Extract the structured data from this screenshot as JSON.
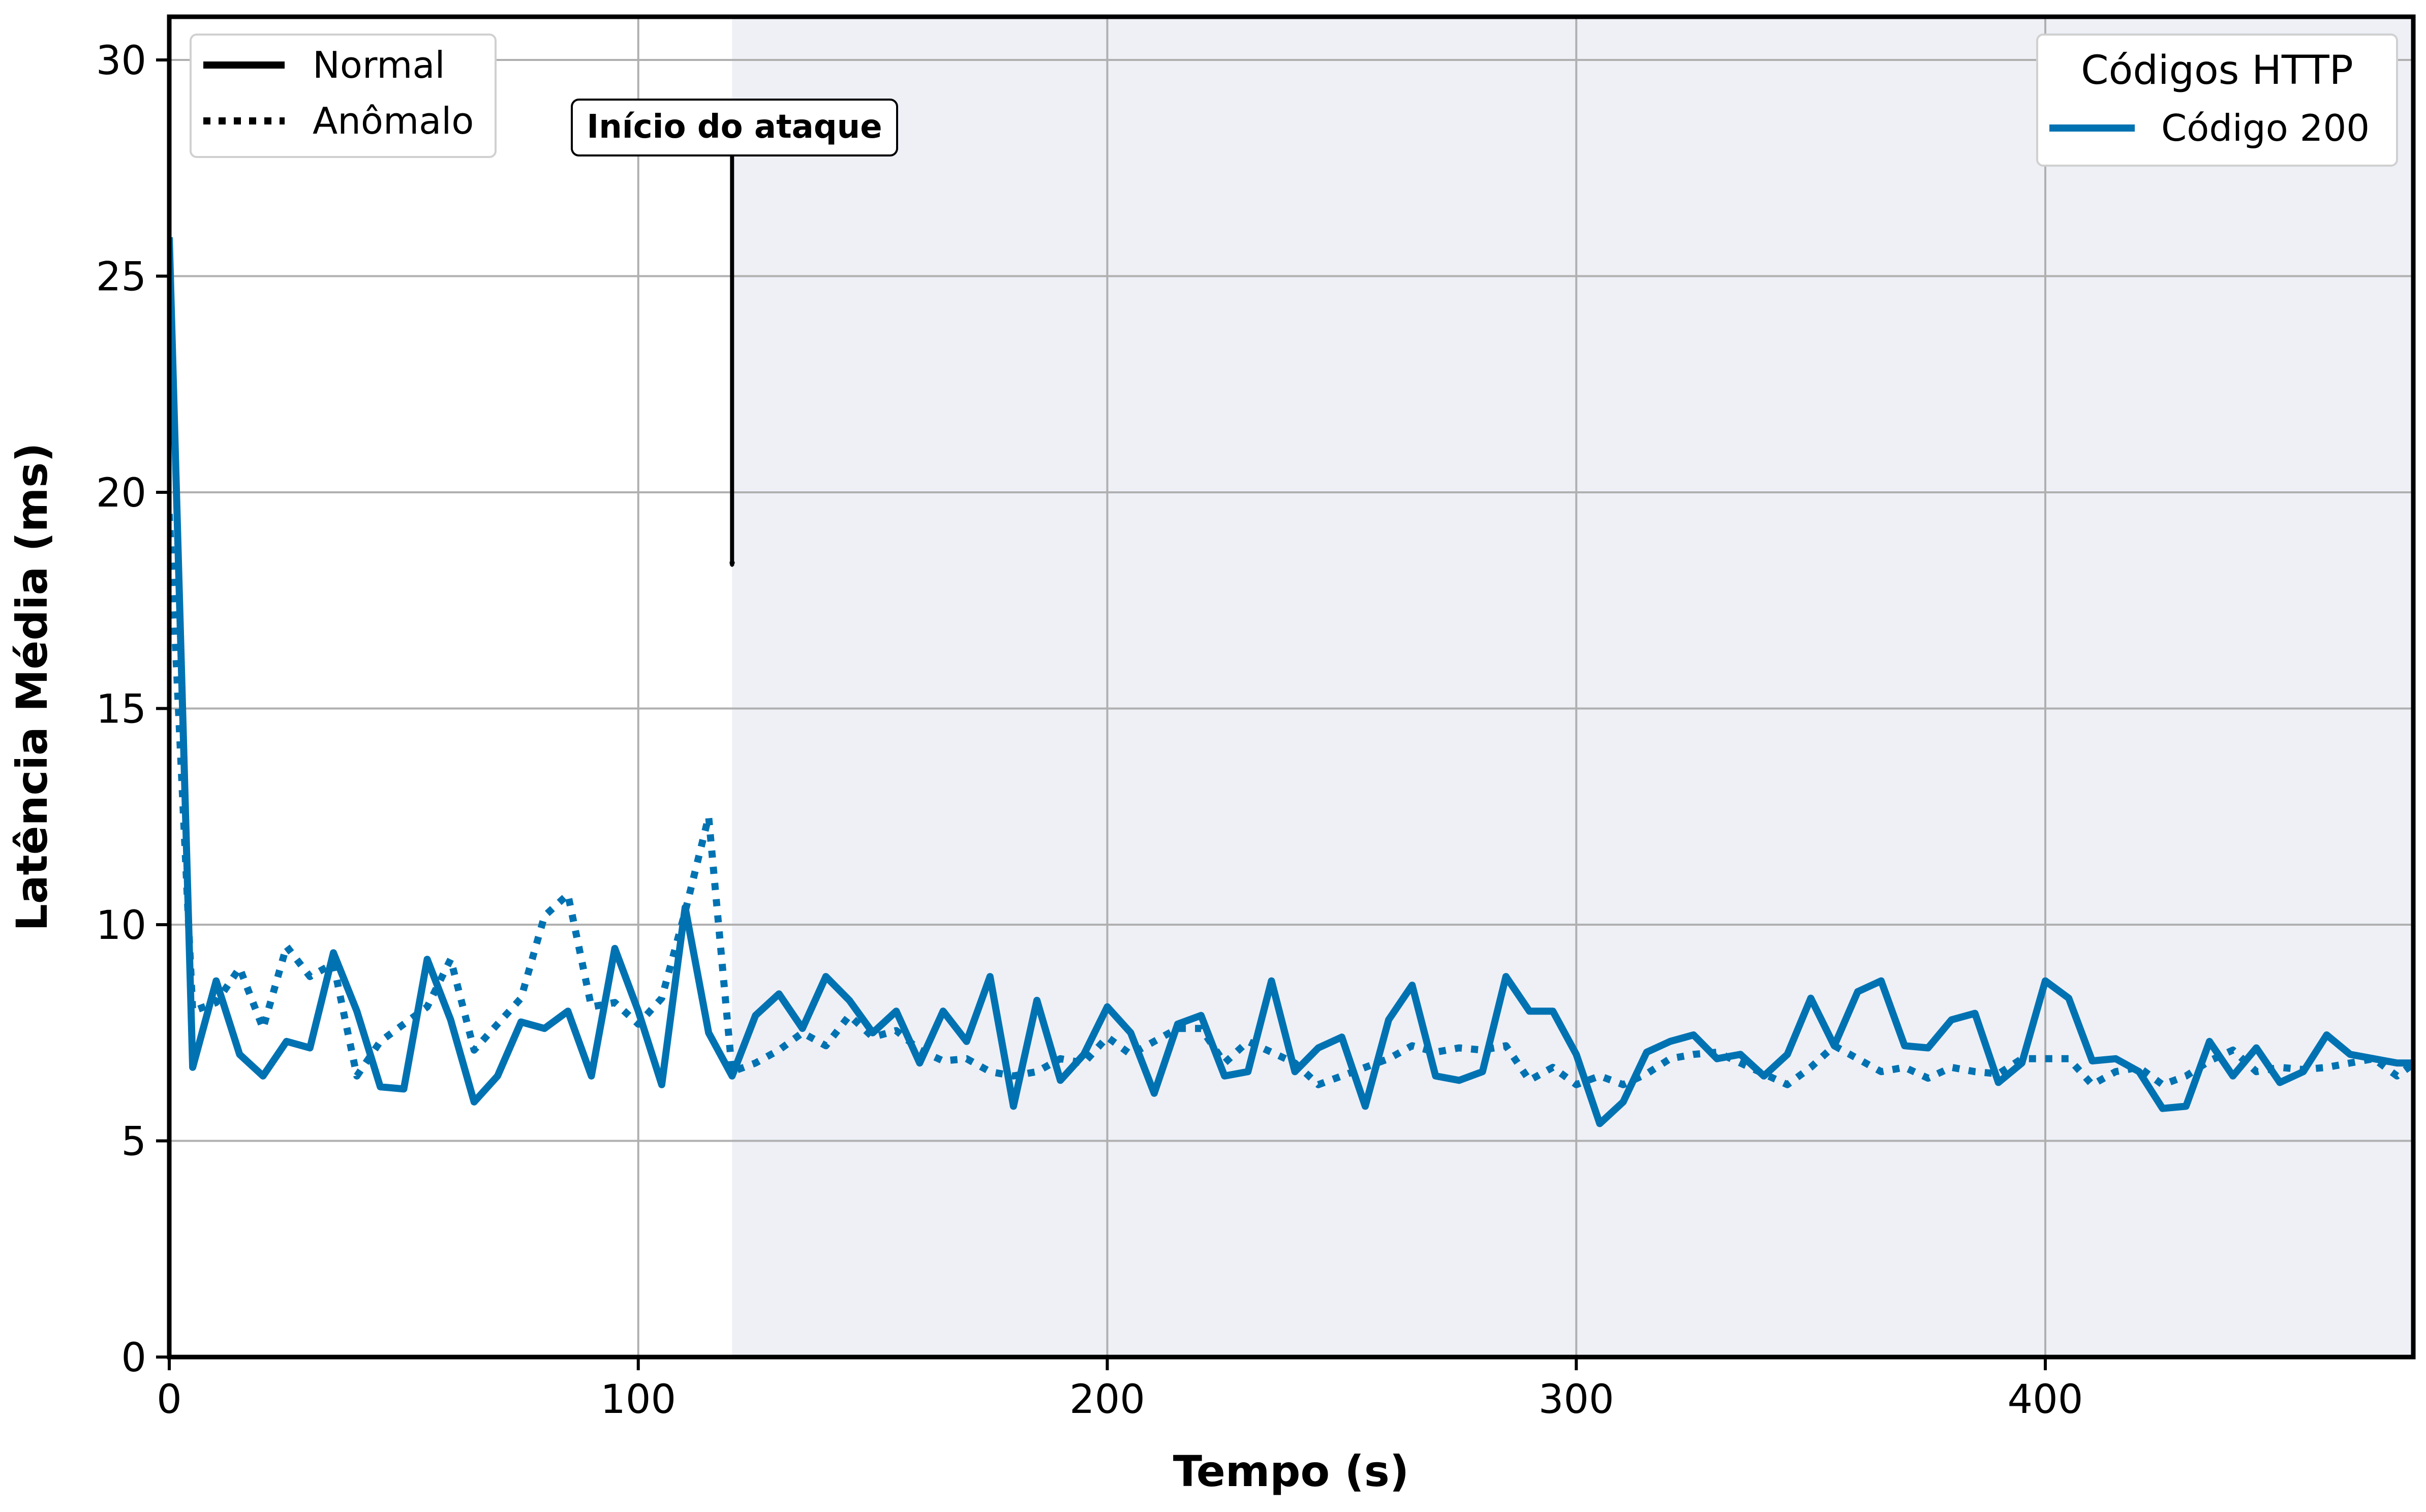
{
  "chart_data": {
    "type": "line",
    "title": "",
    "xlabel": "Tempo (s)",
    "ylabel": "Latência Média (ms)",
    "xlim": [
      0,
      480
    ],
    "ylim": [
      0,
      31
    ],
    "xticks": [
      0,
      100,
      200,
      300,
      400
    ],
    "yticks": [
      0,
      5,
      10,
      15,
      20,
      25,
      30
    ],
    "grid": true,
    "attack_start": 120,
    "shaded_region": [
      120,
      480
    ],
    "shaded_color": "#eef0f6",
    "annotation": {
      "text": "Início do ataque",
      "x": 120,
      "y": 18.3
    },
    "style_legend": {
      "position": "upper-left",
      "entries": [
        {
          "label": "Normal",
          "style": "solid"
        },
        {
          "label": "Anômalo",
          "style": "dotted"
        }
      ]
    },
    "code_legend": {
      "position": "upper-right",
      "title": "Códigos HTTP",
      "entries": [
        {
          "label": "Código 200",
          "color": "#0072B2"
        }
      ]
    },
    "series": [
      {
        "name": "Normal",
        "code": "Código 200",
        "style": "solid",
        "color": "#0072B2",
        "x": [
          0,
          5,
          10,
          15,
          20,
          25,
          30,
          35,
          40,
          45,
          50,
          55,
          60,
          65,
          70,
          75,
          80,
          85,
          90,
          95,
          100,
          105,
          110,
          115,
          120,
          125,
          130,
          135,
          140,
          145,
          150,
          155,
          160,
          165,
          170,
          175,
          180,
          185,
          190,
          195,
          200,
          205,
          210,
          215,
          220,
          225,
          230,
          235,
          240,
          245,
          250,
          255,
          260,
          265,
          270,
          275,
          280,
          285,
          290,
          295,
          300,
          305,
          310,
          315,
          320,
          325,
          330,
          335,
          340,
          345,
          350,
          355,
          360,
          365,
          370,
          375,
          380,
          385,
          390,
          395,
          400,
          405,
          410,
          415,
          420,
          425,
          430,
          435,
          440,
          445,
          450,
          455,
          460,
          465,
          470,
          475,
          480
        ],
        "y": [
          25.9,
          6.7,
          8.7,
          7.0,
          6.5,
          7.3,
          7.15,
          9.35,
          8.0,
          6.25,
          6.2,
          9.2,
          7.8,
          5.9,
          6.5,
          7.75,
          7.6,
          8.0,
          6.5,
          9.45,
          8.0,
          6.3,
          10.4,
          7.5,
          6.5,
          7.9,
          8.4,
          7.6,
          8.8,
          8.25,
          7.5,
          8.0,
          6.8,
          8.0,
          7.3,
          8.8,
          5.8,
          8.25,
          6.4,
          7.0,
          8.1,
          7.5,
          6.1,
          7.7,
          7.9,
          6.5,
          6.6,
          8.7,
          6.6,
          7.15,
          7.4,
          5.8,
          7.8,
          8.6,
          6.5,
          6.4,
          6.6,
          8.8,
          8.0,
          8.0,
          7.0,
          5.4,
          5.9,
          7.05,
          7.3,
          7.45,
          6.9,
          7.0,
          6.5,
          7.0,
          8.3,
          7.2,
          8.45,
          8.7,
          7.2,
          7.15,
          7.8,
          7.95,
          6.35,
          6.8,
          8.7,
          8.3,
          6.85,
          6.9,
          6.6,
          5.75,
          5.8,
          7.3,
          6.5,
          7.15,
          6.35,
          6.6,
          7.45,
          7.0,
          6.9,
          6.8,
          6.8
        ]
      },
      {
        "name": "Anômalo",
        "code": "Código 200",
        "style": "dotted",
        "color": "#0072B2",
        "x": [
          0,
          5,
          10,
          15,
          20,
          25,
          30,
          35,
          40,
          45,
          50,
          55,
          60,
          65,
          70,
          75,
          80,
          85,
          90,
          95,
          100,
          105,
          110,
          115,
          120,
          125,
          130,
          135,
          140,
          145,
          150,
          155,
          160,
          165,
          170,
          175,
          180,
          185,
          190,
          195,
          200,
          205,
          210,
          215,
          220,
          225,
          230,
          235,
          240,
          245,
          250,
          255,
          260,
          265,
          270,
          275,
          280,
          285,
          290,
          295,
          300,
          305,
          310,
          315,
          320,
          325,
          330,
          335,
          340,
          345,
          350,
          355,
          360,
          365,
          370,
          375,
          380,
          385,
          390,
          395,
          400,
          405,
          410,
          415,
          420,
          425,
          430,
          435,
          440,
          445,
          450,
          455,
          460,
          465,
          470,
          475,
          480
        ],
        "y": [
          19.5,
          8.0,
          8.2,
          9.0,
          7.6,
          9.5,
          8.8,
          9.1,
          6.5,
          7.3,
          7.7,
          8.1,
          9.2,
          7.1,
          7.7,
          8.3,
          10.2,
          10.7,
          8.1,
          8.2,
          7.7,
          8.3,
          10.3,
          12.5,
          6.6,
          6.8,
          7.1,
          7.5,
          7.2,
          7.9,
          7.4,
          7.55,
          7.1,
          6.85,
          6.9,
          6.6,
          6.5,
          6.6,
          6.9,
          6.8,
          7.4,
          7.0,
          7.3,
          7.6,
          7.6,
          6.8,
          7.3,
          7.05,
          6.8,
          6.3,
          6.5,
          6.7,
          6.9,
          7.2,
          7.05,
          7.15,
          7.1,
          7.2,
          6.4,
          6.7,
          6.3,
          6.5,
          6.3,
          6.55,
          6.9,
          7.0,
          7.05,
          6.8,
          6.55,
          6.3,
          6.7,
          7.2,
          6.9,
          6.6,
          6.7,
          6.45,
          6.7,
          6.6,
          6.55,
          6.9,
          6.9,
          6.9,
          6.3,
          6.6,
          6.7,
          6.3,
          6.5,
          6.85,
          7.1,
          6.6,
          6.7,
          6.65,
          6.7,
          6.8,
          6.9,
          6.5,
          6.9
        ]
      }
    ]
  }
}
